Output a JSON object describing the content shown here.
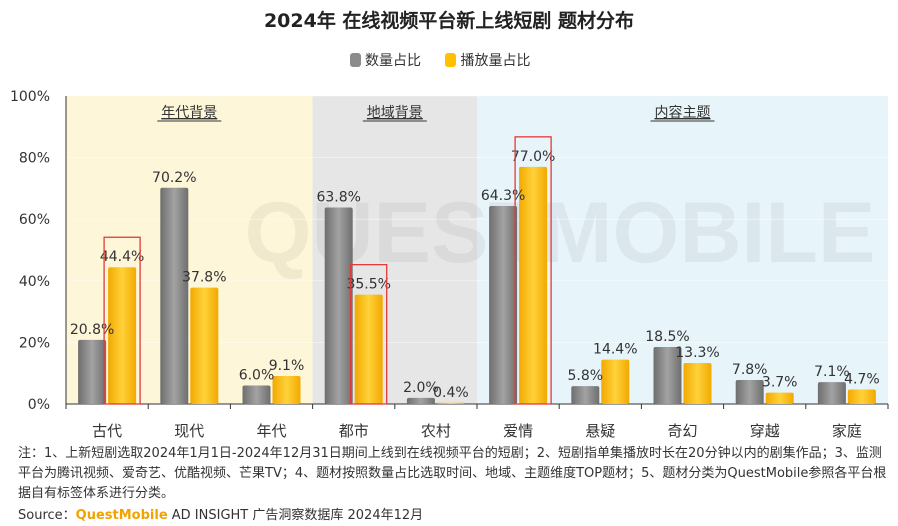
{
  "colors": {
    "series_gray": "#8c8c8c",
    "series_gold": "#ffc000",
    "highlight_border": "#e23a3a",
    "band_era": "#fdf6d8",
    "band_region": "#e6e6e6",
    "band_theme": "#e7f4fa"
  },
  "chart_data": {
    "type": "bar",
    "title": "2024年 在线视频平台新上线短剧 题材分布",
    "categories": [
      "古代",
      "现代",
      "年代",
      "都市",
      "农村",
      "爱情",
      "悬疑",
      "奇幻",
      "穿越",
      "家庭"
    ],
    "series": [
      {
        "name": "数量占比",
        "values": [
          20.8,
          70.2,
          6.0,
          63.8,
          2.0,
          64.3,
          5.8,
          18.5,
          7.8,
          7.1
        ],
        "labels": [
          "20.8%",
          "70.2%",
          "6.0%",
          "63.8%",
          "2.0%",
          "64.3%",
          "5.8%",
          "18.5%",
          "7.8%",
          "7.1%"
        ]
      },
      {
        "name": "播放量占比",
        "values": [
          44.4,
          37.8,
          9.1,
          35.5,
          0.4,
          77.0,
          14.4,
          13.3,
          3.7,
          4.7
        ],
        "labels": [
          "44.4%",
          "37.8%",
          "9.1%",
          "35.5%",
          "0.4%",
          "77.0%",
          "14.4%",
          "13.3%",
          "3.7%",
          "4.7%"
        ]
      }
    ],
    "ylim": [
      0,
      100
    ],
    "yticks": [
      "0%",
      "20%",
      "40%",
      "60%",
      "80%",
      "100%"
    ],
    "legend_position": "top-center",
    "groups": [
      {
        "label": "年代背景",
        "categories": [
          "古代",
          "现代",
          "年代"
        ]
      },
      {
        "label": "地域背景",
        "categories": [
          "都市",
          "农村"
        ]
      },
      {
        "label": "内容主题",
        "categories": [
          "爱情",
          "悬疑",
          "奇幻",
          "穿越",
          "家庭"
        ]
      }
    ],
    "highlighted": [
      "古代 / 播放量占比",
      "都市 / 播放量占比",
      "爱情 / 播放量占比"
    ]
  },
  "watermark": "QUESTMOBILE",
  "notes": "注：1、上新短剧选取2024年1月1日-2024年12月31日期间上线到在线视频平台的短剧；2、短剧指单集播放时长在20分钟以内的剧集作品；3、监测平台为腾讯视频、爱奇艺、优酷视频、芒果TV；4、题材按照数量占比选取时间、地域、主题维度TOP题材；5、题材分类为QuestMobile参照各平台根据自有标签体系进行分类。",
  "source": {
    "prefix": "Source：",
    "brand": "QuestMobile",
    "rest": " AD INSIGHT 广告洞察数据库 2024年12月"
  }
}
